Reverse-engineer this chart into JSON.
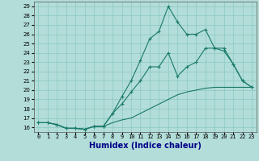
{
  "xlabel": "Humidex (Indice chaleur)",
  "ylabel": "",
  "x_values": [
    0,
    1,
    2,
    3,
    4,
    5,
    6,
    7,
    8,
    9,
    10,
    11,
    12,
    13,
    14,
    15,
    16,
    17,
    18,
    19,
    20,
    21,
    22,
    23
  ],
  "main_line": [
    16.5,
    16.5,
    16.3,
    15.9,
    15.9,
    15.8,
    16.1,
    16.1,
    17.5,
    19.3,
    21.0,
    23.2,
    25.5,
    26.3,
    29.0,
    27.3,
    26.0,
    26.0,
    26.5,
    24.5,
    24.5,
    22.8,
    21.0,
    20.3
  ],
  "upper_line": [
    16.5,
    16.5,
    16.3,
    15.9,
    15.9,
    15.8,
    16.1,
    16.1,
    17.5,
    18.5,
    19.8,
    21.0,
    22.5,
    22.5,
    24.0,
    21.5,
    22.5,
    23.0,
    24.5,
    24.5,
    24.2,
    22.8,
    21.0,
    20.3
  ],
  "lower_line": [
    16.5,
    16.5,
    16.3,
    15.9,
    15.9,
    15.8,
    16.1,
    16.1,
    16.5,
    16.8,
    17.0,
    17.5,
    18.0,
    18.5,
    19.0,
    19.5,
    19.8,
    20.0,
    20.2,
    20.3,
    20.3,
    20.3,
    20.3,
    20.3
  ],
  "line_color": "#1a7a6a",
  "bg_color": "#b2ddd8",
  "grid_color": "#8cc8c0",
  "ylim": [
    15.5,
    29.5
  ],
  "xlim": [
    -0.5,
    23.5
  ],
  "yticks": [
    16,
    17,
    18,
    19,
    20,
    21,
    22,
    23,
    24,
    25,
    26,
    27,
    28,
    29
  ],
  "xticks": [
    0,
    1,
    2,
    3,
    4,
    5,
    6,
    7,
    8,
    9,
    10,
    11,
    12,
    13,
    14,
    15,
    16,
    17,
    18,
    19,
    20,
    21,
    22,
    23
  ],
  "xlabel_color": "#00008b",
  "xlabel_fontsize": 7,
  "ytick_fontsize": 5,
  "xtick_fontsize": 5
}
